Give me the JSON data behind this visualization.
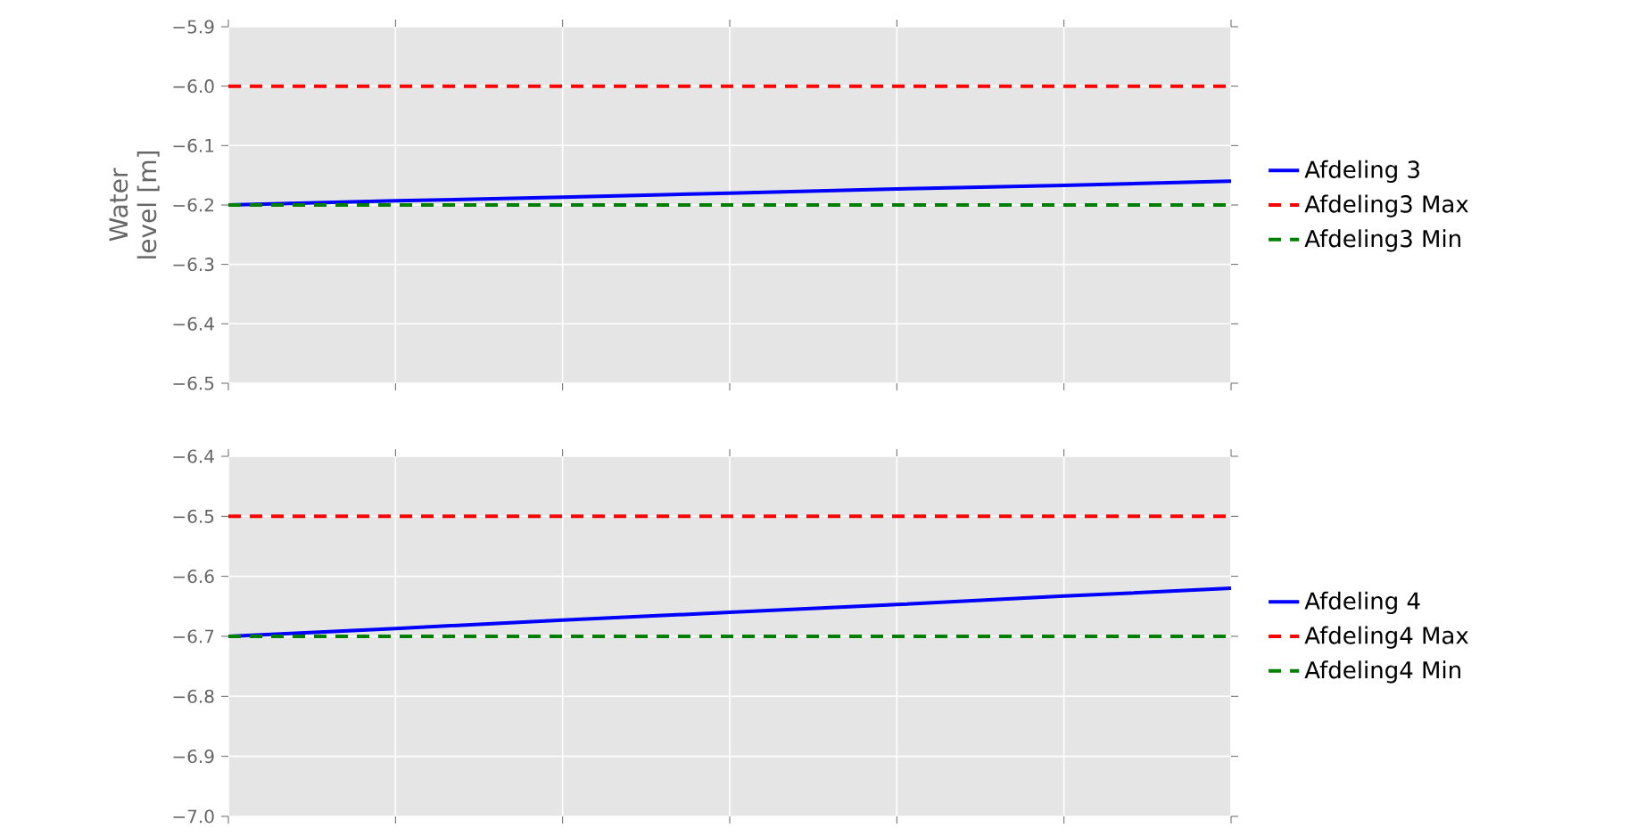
{
  "chart_data": [
    {
      "type": "line",
      "ylabel": "Water level [m]",
      "categories": [
        null,
        null,
        null,
        null,
        null,
        null,
        null
      ],
      "series": [
        {
          "name": "Afdeling 3",
          "color": "#0000ff",
          "line_style": "solid",
          "values": [
            -6.2,
            -6.193,
            -6.187,
            -6.18,
            -6.173,
            -6.167,
            -6.16
          ]
        },
        {
          "name": "Afdeling3 Max",
          "color": "#ff0000",
          "line_style": "dashed",
          "values": [
            -6.0,
            -6.0,
            -6.0,
            -6.0,
            -6.0,
            -6.0,
            -6.0
          ]
        },
        {
          "name": "Afdeling3 Min",
          "color": "#008000",
          "line_style": "dashed",
          "values": [
            -6.2,
            -6.2,
            -6.2,
            -6.2,
            -6.2,
            -6.2,
            -6.2
          ]
        }
      ],
      "ylim": [
        -6.5,
        -5.9
      ],
      "yticks": [
        {
          "value": -6.5,
          "label": "−6.5"
        },
        {
          "value": -6.4,
          "label": "−6.4"
        },
        {
          "value": -6.3,
          "label": "−6.3"
        },
        {
          "value": -6.2,
          "label": "−6.2"
        },
        {
          "value": -6.1,
          "label": "−6.1"
        },
        {
          "value": -6.0,
          "label": "−6.0"
        },
        {
          "value": -5.9,
          "label": "−5.9"
        }
      ],
      "grid": true,
      "legend": "right",
      "tick_labels": "y"
    },
    {
      "type": "line",
      "categories": [
        null,
        null,
        null,
        null,
        null,
        null,
        null
      ],
      "series": [
        {
          "name": "Afdeling 4",
          "color": "#0000ff",
          "line_style": "solid",
          "values": [
            -6.7,
            -6.687,
            -6.673,
            -6.66,
            -6.647,
            -6.633,
            -6.62
          ]
        },
        {
          "name": "Afdeling4 Max",
          "color": "#ff0000",
          "line_style": "dashed",
          "values": [
            -6.5,
            -6.5,
            -6.5,
            -6.5,
            -6.5,
            -6.5,
            -6.5
          ]
        },
        {
          "name": "Afdeling4 Min",
          "color": "#008000",
          "line_style": "dashed",
          "values": [
            -6.7,
            -6.7,
            -6.7,
            -6.7,
            -6.7,
            -6.7,
            -6.7
          ]
        }
      ],
      "ylim": [
        -7.0,
        -6.4
      ],
      "yticks": [
        {
          "value": -7.0,
          "label": "−7.0"
        },
        {
          "value": -6.9,
          "label": "−6.9"
        },
        {
          "value": -6.8,
          "label": "−6.8"
        },
        {
          "value": -6.7,
          "label": "−6.7"
        },
        {
          "value": -6.6,
          "label": "−6.6"
        },
        {
          "value": -6.5,
          "label": "−6.5"
        },
        {
          "value": -6.4,
          "label": "−6.4"
        }
      ],
      "grid": true,
      "legend": "right",
      "tick_labels": "y"
    }
  ]
}
